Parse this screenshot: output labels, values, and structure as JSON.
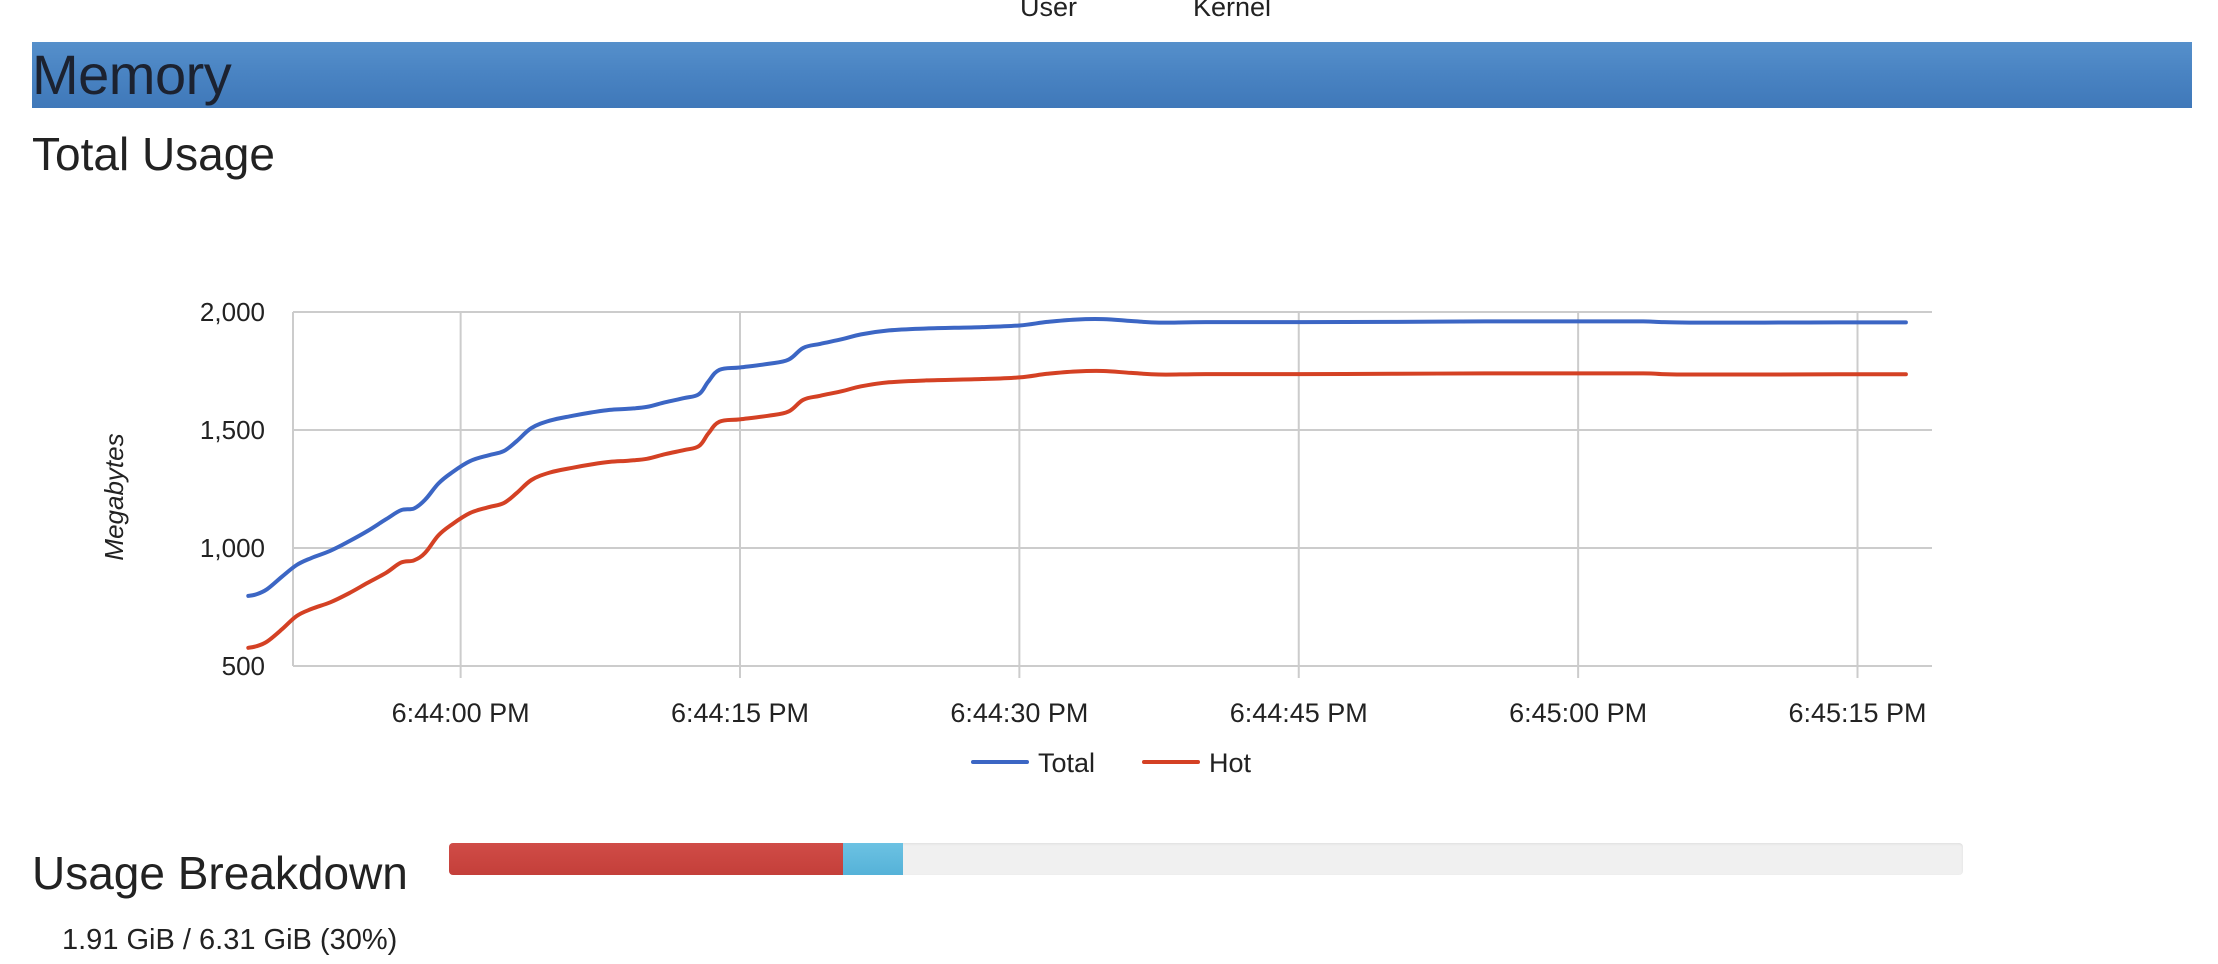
{
  "top_legend": {
    "items": [
      {
        "label": "User",
        "color": "#3c66c4"
      },
      {
        "label": "Kernel",
        "color": "#d44124"
      }
    ]
  },
  "section": {
    "title": "Memory"
  },
  "total_usage": {
    "title": "Total Usage"
  },
  "chart_data": {
    "type": "line",
    "title": "",
    "xlabel": "",
    "ylabel": "Megabytes",
    "ylim": [
      500,
      2000
    ],
    "yticks": [
      {
        "value": 2000,
        "label": "2,000"
      },
      {
        "value": 1500,
        "label": "1,500"
      },
      {
        "value": 1000,
        "label": "1,000"
      },
      {
        "value": 500,
        "label": "500"
      }
    ],
    "xlim": [
      -9,
      79
    ],
    "xticks": [
      {
        "value": 0,
        "label": "6:44:00 PM"
      },
      {
        "value": 15,
        "label": "6:44:15 PM"
      },
      {
        "value": 30,
        "label": "6:44:30 PM"
      },
      {
        "value": 45,
        "label": "6:44:45 PM"
      },
      {
        "value": 60,
        "label": "6:45:00 PM"
      },
      {
        "value": 75,
        "label": "6:45:15 PM"
      }
    ],
    "grid": true,
    "legend_position": "bottom",
    "series": [
      {
        "name": "Total",
        "color": "#3c66c4",
        "points": [
          [
            -11.4,
            797
          ],
          [
            -11.0,
            803
          ],
          [
            -10.4,
            825
          ],
          [
            -9.6,
            878
          ],
          [
            -8.8,
            928
          ],
          [
            -8.0,
            958
          ],
          [
            -7.0,
            988
          ],
          [
            -6.0,
            1028
          ],
          [
            -5.0,
            1072
          ],
          [
            -4.0,
            1122
          ],
          [
            -3.2,
            1160
          ],
          [
            -2.5,
            1168
          ],
          [
            -1.9,
            1205
          ],
          [
            -1.2,
            1273
          ],
          [
            -0.5,
            1318
          ],
          [
            0.5,
            1368
          ],
          [
            1.5,
            1393
          ],
          [
            2.3,
            1410
          ],
          [
            3.0,
            1452
          ],
          [
            3.8,
            1508
          ],
          [
            4.8,
            1540
          ],
          [
            6.0,
            1560
          ],
          [
            7.0,
            1574
          ],
          [
            8.0,
            1585
          ],
          [
            9.0,
            1590
          ],
          [
            10.0,
            1598
          ],
          [
            11.0,
            1618
          ],
          [
            12.0,
            1635
          ],
          [
            12.8,
            1652
          ],
          [
            13.3,
            1705
          ],
          [
            13.9,
            1755
          ],
          [
            15.0,
            1765
          ],
          [
            16.5,
            1780
          ],
          [
            17.6,
            1798
          ],
          [
            18.4,
            1848
          ],
          [
            19.3,
            1865
          ],
          [
            20.5,
            1885
          ],
          [
            21.5,
            1905
          ],
          [
            23.0,
            1922
          ],
          [
            25.0,
            1930
          ],
          [
            28.0,
            1936
          ],
          [
            30.0,
            1943
          ],
          [
            31.5,
            1958
          ],
          [
            33.0,
            1968
          ],
          [
            34.5,
            1970
          ],
          [
            36.0,
            1962
          ],
          [
            37.5,
            1955
          ],
          [
            40.0,
            1957
          ],
          [
            45.0,
            1957
          ],
          [
            50.0,
            1958
          ],
          [
            55.0,
            1960
          ],
          [
            60.0,
            1960
          ],
          [
            63.5,
            1960
          ],
          [
            64.5,
            1957
          ],
          [
            66.0,
            1955
          ],
          [
            70.0,
            1955
          ],
          [
            74.0,
            1956
          ],
          [
            77.6,
            1956
          ]
        ]
      },
      {
        "name": "Hot",
        "color": "#d44124",
        "points": [
          [
            -11.4,
            577
          ],
          [
            -11.0,
            583
          ],
          [
            -10.4,
            603
          ],
          [
            -9.6,
            655
          ],
          [
            -8.8,
            712
          ],
          [
            -8.0,
            742
          ],
          [
            -7.0,
            770
          ],
          [
            -6.0,
            808
          ],
          [
            -5.0,
            852
          ],
          [
            -4.0,
            895
          ],
          [
            -3.2,
            938
          ],
          [
            -2.5,
            948
          ],
          [
            -1.9,
            980
          ],
          [
            -1.2,
            1053
          ],
          [
            -0.5,
            1098
          ],
          [
            0.5,
            1148
          ],
          [
            1.5,
            1173
          ],
          [
            2.3,
            1190
          ],
          [
            3.0,
            1232
          ],
          [
            3.8,
            1288
          ],
          [
            4.8,
            1320
          ],
          [
            6.0,
            1340
          ],
          [
            7.0,
            1354
          ],
          [
            8.0,
            1365
          ],
          [
            9.0,
            1370
          ],
          [
            10.0,
            1378
          ],
          [
            11.0,
            1398
          ],
          [
            12.0,
            1415
          ],
          [
            12.8,
            1432
          ],
          [
            13.3,
            1485
          ],
          [
            13.9,
            1535
          ],
          [
            15.0,
            1545
          ],
          [
            16.5,
            1560
          ],
          [
            17.6,
            1578
          ],
          [
            18.4,
            1628
          ],
          [
            19.3,
            1645
          ],
          [
            20.5,
            1665
          ],
          [
            21.5,
            1685
          ],
          [
            23.0,
            1702
          ],
          [
            25.0,
            1710
          ],
          [
            28.0,
            1716
          ],
          [
            30.0,
            1723
          ],
          [
            31.5,
            1738
          ],
          [
            33.0,
            1748
          ],
          [
            34.5,
            1750
          ],
          [
            36.0,
            1742
          ],
          [
            37.5,
            1735
          ],
          [
            40.0,
            1737
          ],
          [
            45.0,
            1737
          ],
          [
            50.0,
            1738
          ],
          [
            55.0,
            1740
          ],
          [
            60.0,
            1740
          ],
          [
            63.5,
            1740
          ],
          [
            64.5,
            1737
          ],
          [
            66.0,
            1735
          ],
          [
            70.0,
            1735
          ],
          [
            74.0,
            1736
          ],
          [
            77.6,
            1736
          ]
        ]
      }
    ]
  },
  "breakdown": {
    "title": "Usage Breakdown",
    "text": "1.91 GiB / 6.31 GiB (30%)",
    "used_fraction": 0.26,
    "cache_fraction": 0.04,
    "used_color": "#c9423d",
    "cache_color": "#5bb8dd",
    "track_color": "#f0f0f0"
  }
}
